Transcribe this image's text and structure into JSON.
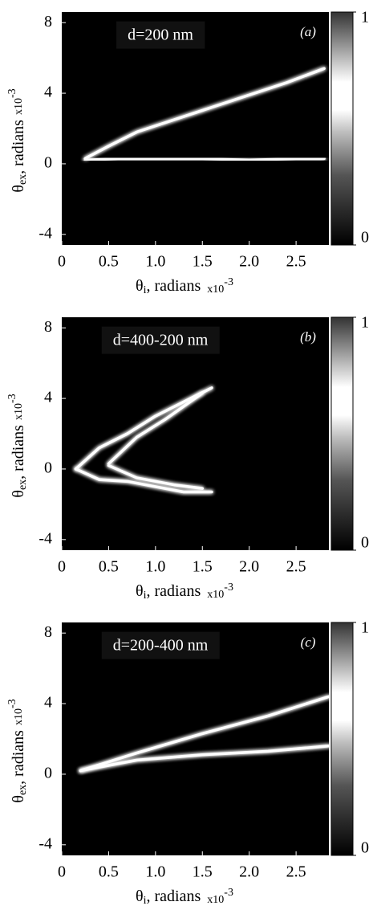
{
  "chart_data": [
    {
      "type": "line",
      "annotation": "d=200 nm",
      "panel_label": "(a)",
      "xlabel_symbol": "θ",
      "xlabel_subscript": "i",
      "xlabel_rest": ", radians",
      "ylabel_symbol": "θ",
      "ylabel_subscript": "ex",
      "ylabel_rest": ", radians",
      "multiplier": "x10",
      "multiplier_exponent": "-3",
      "xlim": [
        0,
        2.85
      ],
      "ylim": [
        -4.6,
        8.6
      ],
      "xticks": [
        0,
        {
          "value": 0.5,
          "label": "0.5"
        },
        {
          "value": 1,
          "label": "1.0"
        },
        {
          "value": 1.5,
          "label": "1.5"
        },
        {
          "value": 2,
          "label": "2.0"
        },
        {
          "value": 2.5,
          "label": "2.5"
        }
      ],
      "yticks": [
        -4,
        0,
        4,
        8
      ],
      "clim": [
        0,
        1
      ],
      "cticks": [
        0,
        1
      ],
      "series": [
        {
          "color": "#ffffff",
          "x": [
            0.25,
            0.5,
            0.8,
            1.2,
            1.6,
            2.0,
            2.4,
            2.8
          ],
          "values": [
            0.3,
            1.0,
            1.8,
            2.5,
            3.2,
            3.9,
            4.6,
            5.4
          ]
        },
        {
          "color": "#ffffff",
          "x": [
            0.25,
            0.6,
            1.0,
            1.5,
            2.0,
            2.5,
            2.8
          ],
          "values": [
            0.2,
            0.3,
            0.3,
            0.3,
            0.2,
            0.3,
            0.3
          ]
        }
      ]
    },
    {
      "type": "line",
      "annotation": "d=400-200 nm",
      "panel_label": "(b)",
      "xlabel_symbol": "θ",
      "xlabel_subscript": "i",
      "xlabel_rest": ", radians",
      "ylabel_symbol": "θ",
      "ylabel_subscript": "ex",
      "ylabel_rest": ", radians",
      "multiplier": "x10",
      "multiplier_exponent": "-3",
      "xlim": [
        0,
        2.85
      ],
      "ylim": [
        -4.6,
        8.6
      ],
      "xticks": [
        0,
        {
          "value": 0.5,
          "label": "0.5"
        },
        {
          "value": 1,
          "label": "1.0"
        },
        {
          "value": 1.5,
          "label": "1.5"
        },
        {
          "value": 2,
          "label": "2.0"
        },
        {
          "value": 2.5,
          "label": "2.5"
        }
      ],
      "yticks": [
        -4,
        0,
        4,
        8
      ],
      "clim": [
        0,
        1
      ],
      "cticks": [
        0,
        1
      ],
      "series": [
        {
          "color": "#ffffff",
          "x": [
            0.15,
            0.4,
            0.7,
            1.0,
            1.3,
            1.6
          ],
          "values": [
            0,
            1.2,
            2.0,
            3.0,
            3.8,
            4.6
          ]
        },
        {
          "color": "#ffffff",
          "x": [
            0.15,
            0.4,
            0.7,
            1.0,
            1.3,
            1.6
          ],
          "values": [
            0,
            -0.6,
            -0.7,
            -1.0,
            -1.3,
            -1.3
          ]
        },
        {
          "color": "#ffffff",
          "x": [
            0.5,
            0.8,
            1.1,
            1.5
          ],
          "values": [
            0.3,
            1.8,
            2.8,
            4.3
          ]
        },
        {
          "color": "#ffffff",
          "x": [
            0.5,
            0.8,
            1.2,
            1.5
          ],
          "values": [
            0.2,
            -0.5,
            -0.9,
            -1.1
          ]
        }
      ]
    },
    {
      "type": "line",
      "annotation": "d=200-400 nm",
      "panel_label": "(c)",
      "xlabel_symbol": "θ",
      "xlabel_subscript": "i",
      "xlabel_rest": ", radians",
      "ylabel_symbol": "θ",
      "ylabel_subscript": "ex",
      "ylabel_rest": ", radians",
      "multiplier": "x10",
      "multiplier_exponent": "-3",
      "xlim": [
        0,
        2.85
      ],
      "ylim": [
        -4.6,
        8.6
      ],
      "xticks": [
        0,
        {
          "value": 0.5,
          "label": "0.5"
        },
        {
          "value": 1,
          "label": "1.0"
        },
        {
          "value": 1.5,
          "label": "1.5"
        },
        {
          "value": 2,
          "label": "2.0"
        },
        {
          "value": 2.5,
          "label": "2.5"
        }
      ],
      "yticks": [
        -4,
        0,
        4,
        8
      ],
      "clim": [
        0,
        1
      ],
      "cticks": [
        0,
        1
      ],
      "series": [
        {
          "color": "#ffffff",
          "x": [
            0.2,
            0.8,
            1.5,
            2.2,
            2.85
          ],
          "values": [
            0.2,
            1.2,
            2.3,
            3.3,
            4.4
          ]
        },
        {
          "color": "#ffffff",
          "x": [
            0.2,
            0.8,
            1.5,
            2.2,
            2.85
          ],
          "values": [
            0.2,
            0.8,
            1.1,
            1.3,
            1.6
          ]
        }
      ]
    }
  ]
}
